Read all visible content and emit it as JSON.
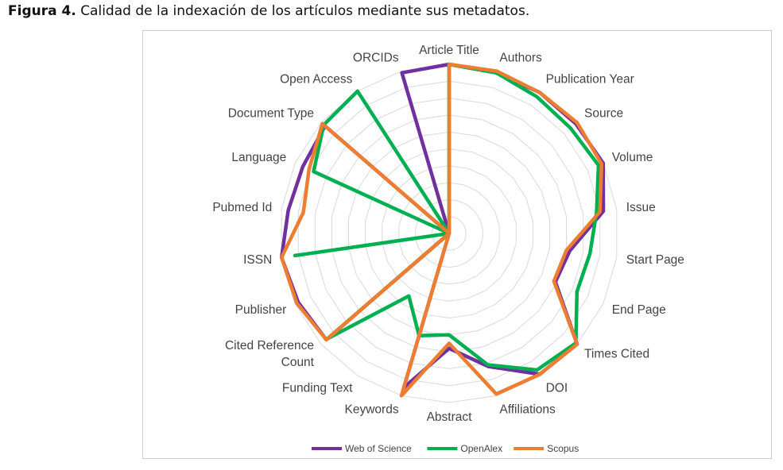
{
  "caption": {
    "label": "Figura 4.",
    "text": "Calidad de la indexación de los artículos mediante sus metadatos."
  },
  "chart_data": {
    "type": "radar",
    "categories": [
      "Article Title",
      "Authors",
      "Publication Year",
      "Source",
      "Volume",
      "Issue",
      "Start Page",
      "End Page",
      "Times Cited",
      "DOI",
      "Affiliations",
      "Abstract",
      "Keywords",
      "Funding Text",
      "Cited Reference Count",
      "Publisher",
      "ISSN",
      "Pubmed Id",
      "Language",
      "Document Type",
      "Open Access",
      "ORCIDs"
    ],
    "category_lines": [
      [
        "Article Title"
      ],
      [
        "Authors"
      ],
      [
        "Publication Year"
      ],
      [
        "Source"
      ],
      [
        "Volume"
      ],
      [
        "Issue"
      ],
      [
        "Start Page"
      ],
      [
        "End Page"
      ],
      [
        "Times Cited"
      ],
      [
        "DOI"
      ],
      [
        "Affiliations"
      ],
      [
        "Abstract"
      ],
      [
        "Keywords"
      ],
      [
        "Funding Text"
      ],
      [
        "Cited Reference",
        "Count"
      ],
      [
        "Publisher"
      ],
      [
        "ISSN"
      ],
      [
        "Pubmed Id"
      ],
      [
        "Language"
      ],
      [
        "Document Type"
      ],
      [
        "Open Access"
      ],
      [
        "ORCIDs"
      ]
    ],
    "series": [
      {
        "name": "Web of Science",
        "color": "#7030a0",
        "values": [
          100,
          99,
          99,
          99,
          100,
          92,
          72,
          69,
          100,
          99,
          82,
          68,
          95,
          0,
          96,
          98,
          100,
          96,
          95,
          97,
          0,
          99
        ]
      },
      {
        "name": "OpenAlex",
        "color": "#00b050",
        "values": [
          100,
          99,
          96,
          95,
          97,
          88,
          84,
          83,
          99,
          96,
          81,
          60,
          63,
          44,
          95,
          0,
          92,
          0,
          88,
          98,
          100,
          0
        ]
      },
      {
        "name": "Scopus",
        "color": "#ed7d31",
        "values": [
          100,
          100,
          99,
          100,
          99,
          90,
          70,
          68,
          100,
          99,
          99,
          65,
          100,
          0,
          96,
          99,
          100,
          87,
          91,
          99,
          0,
          0
        ]
      }
    ],
    "rlim": [
      0,
      100
    ],
    "grid_rings": 10,
    "grid": true,
    "legend_position": "bottom"
  }
}
